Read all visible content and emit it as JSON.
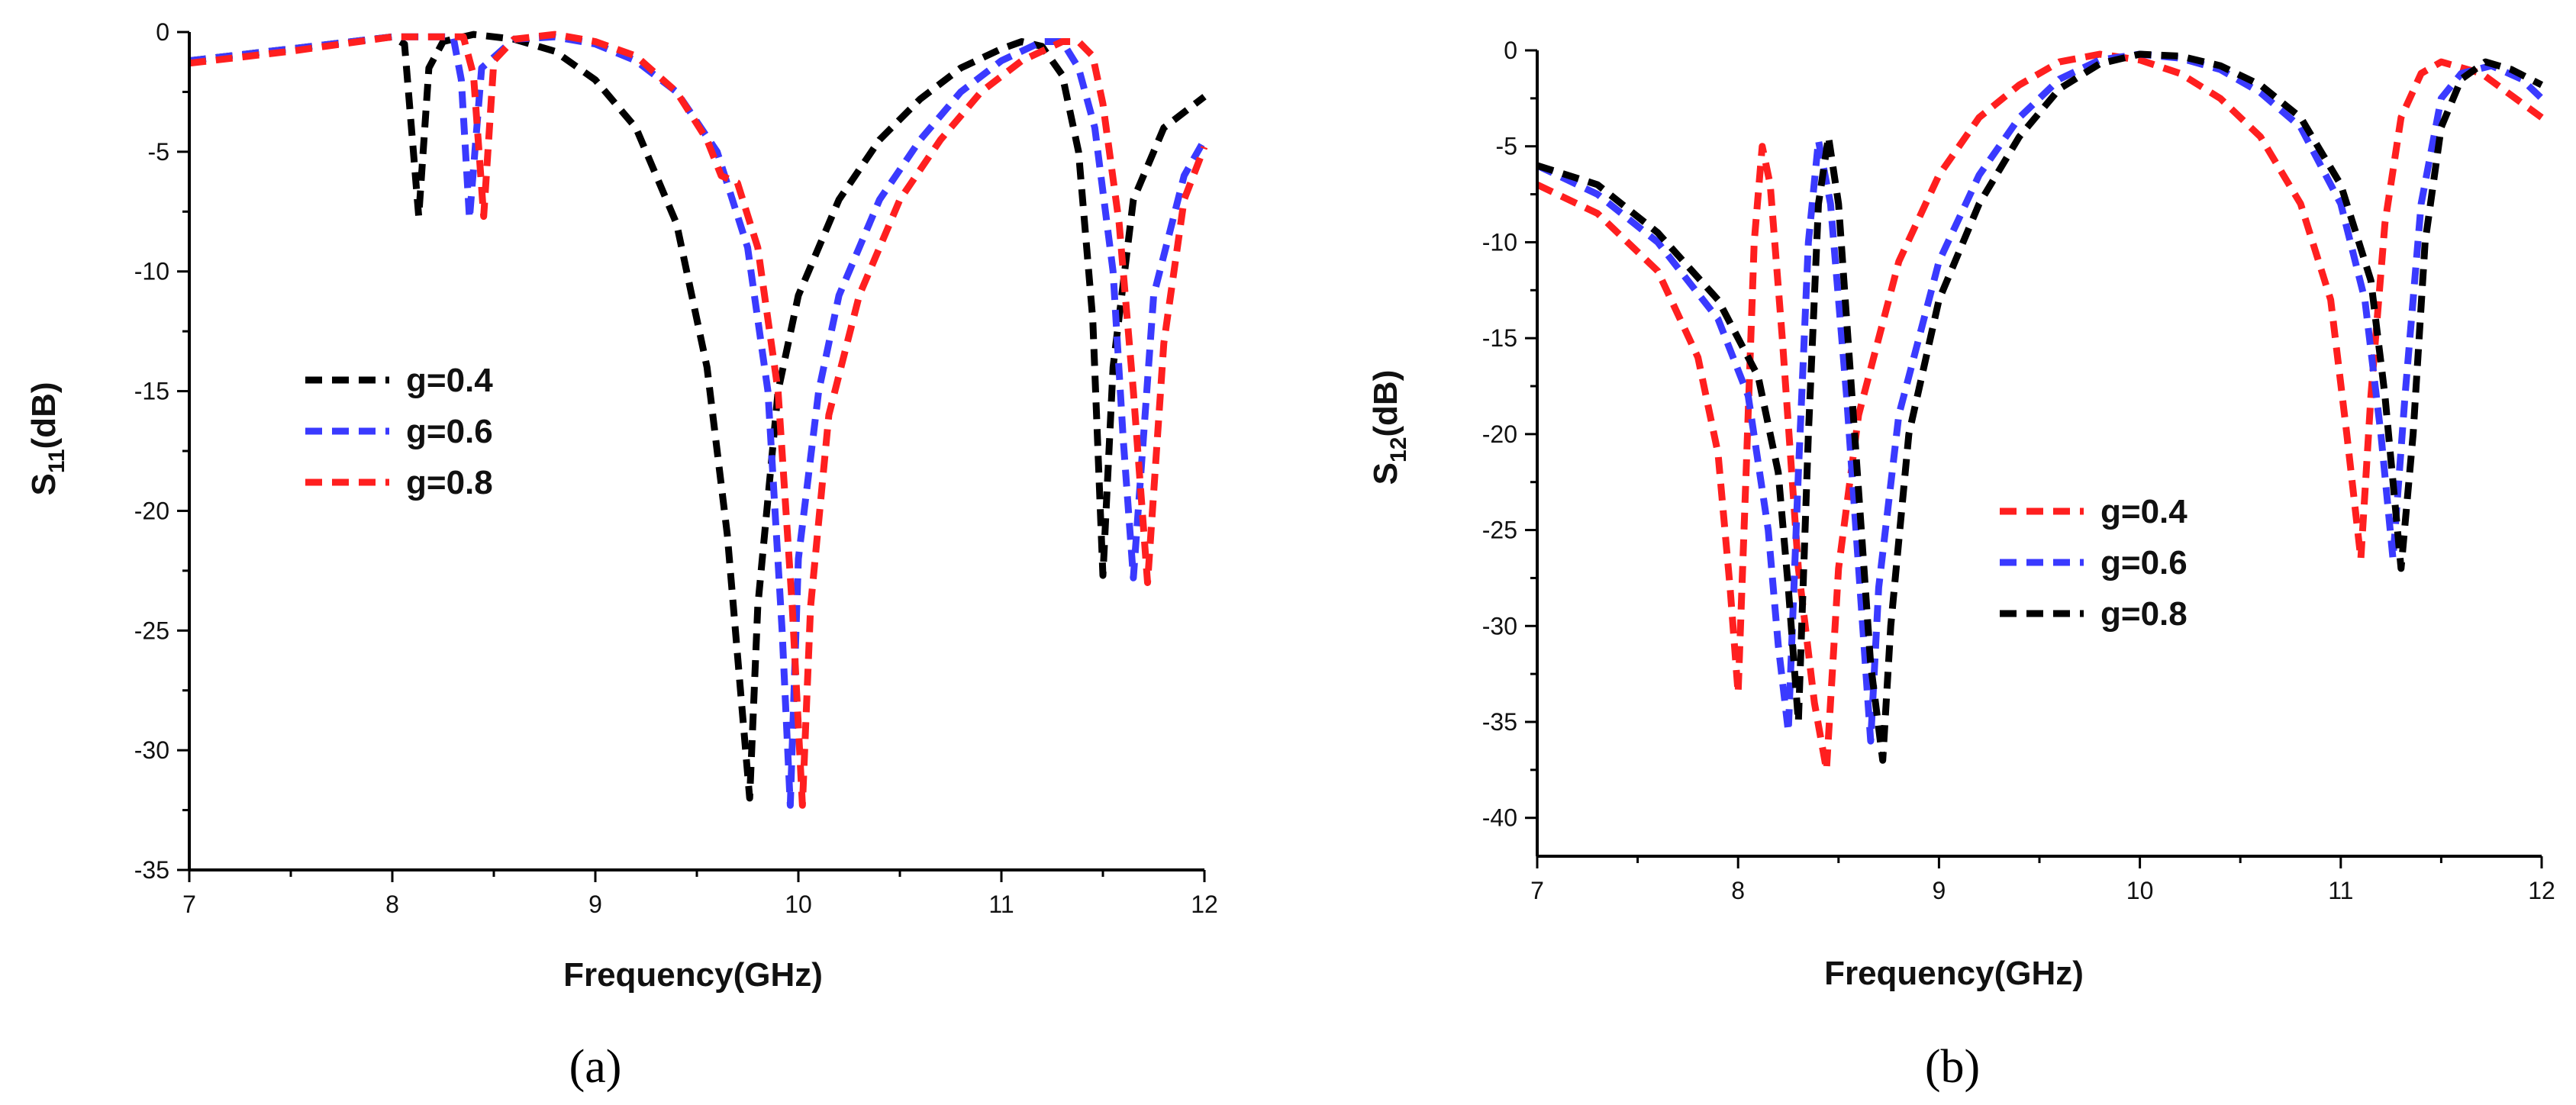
{
  "chart_data": [
    {
      "type": "line",
      "panel_label": "(a)",
      "xlabel": "Frequency(GHz)",
      "ylabel": {
        "base": "S",
        "sub": "11",
        "suffix": "(dB)"
      },
      "xlim": [
        7,
        12
      ],
      "ylim": [
        -35,
        0
      ],
      "xticks": [
        7,
        8,
        9,
        10,
        11,
        12
      ],
      "yticks": [
        0,
        -5,
        -10,
        -15,
        -20,
        -25,
        -30,
        -35
      ],
      "series": [
        {
          "name": "g=0.4",
          "color": "#000000",
          "x": [
            7,
            7.5,
            8,
            8.06,
            8.13,
            8.18,
            8.25,
            8.4,
            8.6,
            8.8,
            9.0,
            9.2,
            9.4,
            9.55,
            9.65,
            9.72,
            9.76,
            9.8,
            9.9,
            10.0,
            10.2,
            10.4,
            10.6,
            10.8,
            11.0,
            11.1,
            11.2,
            11.3,
            11.38,
            11.45,
            11.5,
            11.55,
            11.65,
            11.8,
            12
          ],
          "y": [
            -1.2,
            -0.7,
            -0.2,
            -0.5,
            -7.7,
            -1.5,
            -0.4,
            -0.1,
            -0.3,
            -0.8,
            -2.0,
            -4.0,
            -8.0,
            -14.0,
            -21.0,
            -28.0,
            -32.0,
            -24.0,
            -15.0,
            -11.0,
            -7.0,
            -4.5,
            -2.8,
            -1.5,
            -0.7,
            -0.4,
            -0.6,
            -1.8,
            -5.0,
            -12.0,
            -22.7,
            -14.0,
            -7.0,
            -4.0,
            -2.7
          ]
        },
        {
          "name": "g=0.6",
          "color": "#3a3aff",
          "x": [
            7,
            7.5,
            8,
            8.3,
            8.34,
            8.38,
            8.44,
            8.6,
            8.8,
            9.0,
            9.2,
            9.4,
            9.6,
            9.75,
            9.85,
            9.92,
            9.96,
            10.0,
            10.1,
            10.2,
            10.4,
            10.6,
            10.8,
            11.0,
            11.2,
            11.3,
            11.38,
            11.46,
            11.55,
            11.6,
            11.65,
            11.75,
            11.9,
            12
          ],
          "y": [
            -1.2,
            -0.7,
            -0.2,
            -0.2,
            -2.0,
            -7.8,
            -1.5,
            -0.3,
            -0.2,
            -0.5,
            -1.2,
            -2.5,
            -5.0,
            -9.0,
            -15.0,
            -25.0,
            -32.3,
            -22.0,
            -15.0,
            -11.0,
            -7.0,
            -4.5,
            -2.5,
            -1.2,
            -0.4,
            -0.4,
            -1.5,
            -4.0,
            -10.0,
            -17.0,
            -22.8,
            -11.0,
            -6.0,
            -4.5
          ]
        },
        {
          "name": "g=0.8",
          "color": "#ff1f1f",
          "x": [
            7,
            7.5,
            8,
            8.35,
            8.4,
            8.45,
            8.5,
            8.6,
            8.8,
            9.0,
            9.2,
            9.4,
            9.55,
            9.62,
            9.7,
            9.8,
            9.9,
            9.97,
            10.02,
            10.06,
            10.15,
            10.3,
            10.5,
            10.7,
            10.9,
            11.1,
            11.3,
            11.38,
            11.45,
            11.5,
            11.58,
            11.65,
            11.72,
            11.8,
            11.9,
            12
          ],
          "y": [
            -1.3,
            -0.8,
            -0.2,
            -0.2,
            -1.8,
            -7.7,
            -1.2,
            -0.3,
            -0.1,
            -0.4,
            -1.0,
            -2.5,
            -4.5,
            -6.0,
            -6.3,
            -9.0,
            -15.0,
            -24.0,
            -32.3,
            -24.0,
            -16.0,
            -11.0,
            -7.0,
            -4.5,
            -2.5,
            -1.2,
            -0.4,
            -0.4,
            -1.0,
            -3.0,
            -8.0,
            -15.0,
            -23.0,
            -13.0,
            -7.0,
            -4.8
          ]
        }
      ],
      "legend": {
        "placement": "center-left"
      }
    },
    {
      "type": "line",
      "panel_label": "(b)",
      "xlabel": "Frequency(GHz)",
      "ylabel": {
        "base": "S",
        "sub": "12",
        "suffix": "(dB)"
      },
      "xlim": [
        7,
        12
      ],
      "ylim": [
        -42,
        0
      ],
      "xticks": [
        7,
        8,
        9,
        10,
        11,
        12
      ],
      "yticks": [
        0,
        -5,
        -10,
        -15,
        -20,
        -25,
        -30,
        -35,
        -40
      ],
      "series": [
        {
          "name": "g=0.4",
          "color": "#ff1f1f",
          "x": [
            7,
            7.3,
            7.6,
            7.8,
            7.9,
            7.96,
            8.0,
            8.04,
            8.08,
            8.12,
            8.16,
            8.22,
            8.3,
            8.38,
            8.44,
            8.5,
            8.6,
            8.8,
            9.0,
            9.2,
            9.4,
            9.6,
            9.8,
            10.0,
            10.2,
            10.4,
            10.6,
            10.8,
            10.95,
            11.03,
            11.1,
            11.15,
            11.22,
            11.3,
            11.4,
            11.5,
            11.7,
            12
          ],
          "y": [
            -7.0,
            -8.5,
            -11.5,
            -16.0,
            -21.0,
            -28.0,
            -33.5,
            -22.0,
            -10.0,
            -5.0,
            -7.0,
            -15.0,
            -27.0,
            -34.0,
            -37.5,
            -27.0,
            -19.0,
            -11.0,
            -6.5,
            -3.5,
            -1.8,
            -0.6,
            -0.2,
            -0.5,
            -1.2,
            -2.5,
            -4.5,
            -8.0,
            -13.0,
            -20.0,
            -26.5,
            -18.0,
            -9.0,
            -3.5,
            -1.2,
            -0.6,
            -1.2,
            -3.5
          ]
        },
        {
          "name": "g=0.6",
          "color": "#3a3aff",
          "x": [
            7,
            7.3,
            7.6,
            7.9,
            8.05,
            8.15,
            8.2,
            8.25,
            8.3,
            8.35,
            8.4,
            8.46,
            8.54,
            8.62,
            8.66,
            8.7,
            8.8,
            9.0,
            9.2,
            9.4,
            9.6,
            9.8,
            10.0,
            10.2,
            10.4,
            10.6,
            10.8,
            11.0,
            11.12,
            11.2,
            11.26,
            11.32,
            11.4,
            11.5,
            11.6,
            11.75,
            11.9,
            12
          ],
          "y": [
            -6.0,
            -7.5,
            -10.0,
            -14.0,
            -18.0,
            -25.0,
            -31.0,
            -35.5,
            -22.0,
            -10.0,
            -4.7,
            -8.0,
            -18.0,
            -30.0,
            -36.0,
            -28.0,
            -19.0,
            -11.0,
            -6.5,
            -3.5,
            -1.5,
            -0.5,
            -0.2,
            -0.4,
            -1.0,
            -2.2,
            -4.0,
            -8.0,
            -13.0,
            -20.0,
            -26.5,
            -18.0,
            -8.0,
            -2.5,
            -1.2,
            -0.8,
            -1.5,
            -2.5
          ]
        },
        {
          "name": "g=0.8",
          "color": "#000000",
          "x": [
            7,
            7.3,
            7.6,
            7.9,
            8.1,
            8.2,
            8.25,
            8.3,
            8.35,
            8.4,
            8.45,
            8.5,
            8.58,
            8.66,
            8.72,
            8.76,
            8.85,
            9.0,
            9.2,
            9.4,
            9.6,
            9.8,
            10.0,
            10.2,
            10.4,
            10.6,
            10.8,
            11.0,
            11.15,
            11.22,
            11.3,
            11.36,
            11.42,
            11.5,
            11.6,
            11.72,
            11.85,
            12
          ],
          "y": [
            -6.0,
            -7.0,
            -9.5,
            -13.0,
            -17.0,
            -22.0,
            -28.0,
            -35.0,
            -20.0,
            -8.0,
            -4.5,
            -8.0,
            -20.0,
            -32.0,
            -37.0,
            -30.0,
            -20.0,
            -13.0,
            -8.0,
            -4.5,
            -2.0,
            -0.7,
            -0.2,
            -0.3,
            -0.8,
            -1.8,
            -3.5,
            -7.0,
            -12.0,
            -18.0,
            -27.0,
            -20.0,
            -10.0,
            -4.0,
            -1.5,
            -0.6,
            -1.0,
            -1.8
          ]
        }
      ],
      "legend": {
        "placement": "center"
      }
    }
  ]
}
